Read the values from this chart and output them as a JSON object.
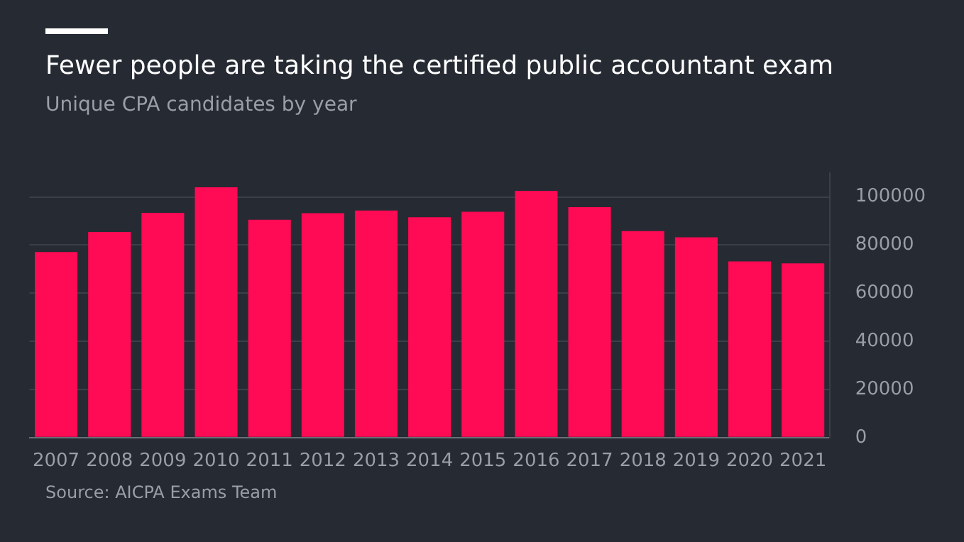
{
  "chart_data": {
    "type": "bar",
    "title": "Fewer people are taking the certified public accountant exam",
    "subtitle": "Unique CPA candidates by year",
    "categories": [
      "2007",
      "2008",
      "2009",
      "2010",
      "2011",
      "2012",
      "2013",
      "2014",
      "2015",
      "2016",
      "2017",
      "2018",
      "2019",
      "2020",
      "2021"
    ],
    "values": [
      77100,
      85400,
      93400,
      104000,
      90500,
      93200,
      94300,
      91500,
      93800,
      102500,
      95700,
      85800,
      83200,
      73200,
      72400
    ],
    "color": "#ff0a54",
    "ylim": [
      0,
      110000
    ],
    "yticks": [
      0,
      20000,
      40000,
      60000,
      80000,
      100000
    ],
    "grid": "y",
    "legend": false,
    "annotations": [
      "Source: AICPA Exams Team"
    ]
  }
}
